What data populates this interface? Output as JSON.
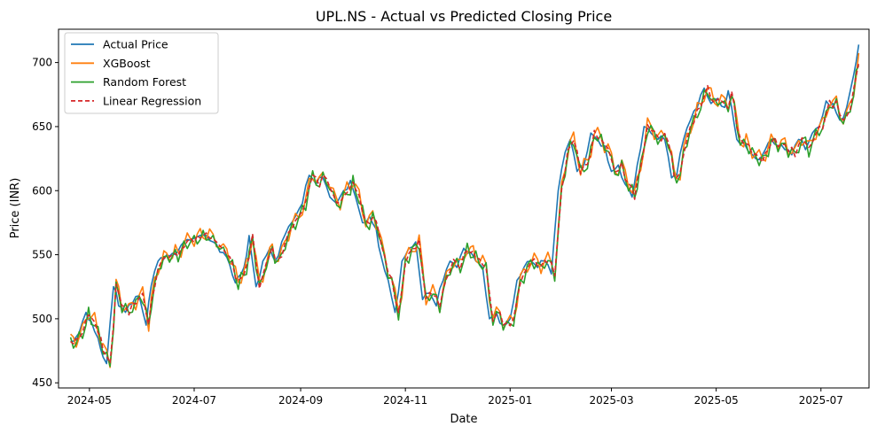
{
  "chart_data": {
    "type": "line",
    "title": "UPL.NS - Actual vs Predicted Closing Price",
    "xlabel": "Date",
    "ylabel": "Price (INR)",
    "xlim": [
      "2024-04-13",
      "2025-07-29"
    ],
    "ylim": [
      446,
      726
    ],
    "x_ticks": [
      "2024-05",
      "2024-07",
      "2024-09",
      "2024-11",
      "2025-01",
      "2025-03",
      "2025-05",
      "2025-07"
    ],
    "x_tick_dates": [
      "2024-05-01",
      "2024-07-01",
      "2024-09-01",
      "2024-11-01",
      "2025-01-01",
      "2025-03-01",
      "2025-05-01",
      "2025-07-01"
    ],
    "y_ticks": [
      450,
      500,
      550,
      600,
      650,
      700
    ],
    "grid": false,
    "legend_position": "top-left",
    "anchors": [
      [
        "2024-04-20",
        482
      ],
      [
        "2024-04-25",
        489
      ],
      [
        "2024-04-29",
        505
      ],
      [
        "2024-05-02",
        498
      ],
      [
        "2024-05-06",
        485
      ],
      [
        "2024-05-09",
        470
      ],
      [
        "2024-05-11",
        465
      ],
      [
        "2024-05-15",
        525
      ],
      [
        "2024-05-18",
        510
      ],
      [
        "2024-05-22",
        505
      ],
      [
        "2024-05-26",
        512
      ],
      [
        "2024-05-30",
        518
      ],
      [
        "2024-06-03",
        495
      ],
      [
        "2024-06-06",
        526
      ],
      [
        "2024-06-10",
        545
      ],
      [
        "2024-06-15",
        550
      ],
      [
        "2024-06-20",
        550
      ],
      [
        "2024-06-25",
        560
      ],
      [
        "2024-07-01",
        563
      ],
      [
        "2024-07-08",
        565
      ],
      [
        "2024-07-12",
        560
      ],
      [
        "2024-07-16",
        552
      ],
      [
        "2024-07-20",
        548
      ],
      [
        "2024-07-25",
        528
      ],
      [
        "2024-07-30",
        540
      ],
      [
        "2024-08-02",
        565
      ],
      [
        "2024-08-06",
        525
      ],
      [
        "2024-08-10",
        545
      ],
      [
        "2024-08-14",
        555
      ],
      [
        "2024-08-17",
        545
      ],
      [
        "2024-08-21",
        560
      ],
      [
        "2024-08-25",
        572
      ],
      [
        "2024-08-29",
        580
      ],
      [
        "2024-09-02",
        590
      ],
      [
        "2024-09-06",
        612
      ],
      [
        "2024-09-10",
        605
      ],
      [
        "2024-09-14",
        610
      ],
      [
        "2024-09-18",
        595
      ],
      [
        "2024-09-22",
        590
      ],
      [
        "2024-09-26",
        600
      ],
      [
        "2024-09-30",
        608
      ],
      [
        "2024-10-03",
        595
      ],
      [
        "2024-10-07",
        575
      ],
      [
        "2024-10-11",
        580
      ],
      [
        "2024-10-15",
        570
      ],
      [
        "2024-10-18",
        548
      ],
      [
        "2024-10-22",
        530
      ],
      [
        "2024-10-26",
        505
      ],
      [
        "2024-10-30",
        545
      ],
      [
        "2024-11-03",
        555
      ],
      [
        "2024-11-07",
        560
      ],
      [
        "2024-11-11",
        515
      ],
      [
        "2024-11-15",
        520
      ],
      [
        "2024-11-19",
        510
      ],
      [
        "2024-11-23",
        530
      ],
      [
        "2024-11-27",
        545
      ],
      [
        "2024-12-01",
        540
      ],
      [
        "2024-12-05",
        555
      ],
      [
        "2024-12-09",
        552
      ],
      [
        "2024-12-12",
        545
      ],
      [
        "2024-12-16",
        540
      ],
      [
        "2024-12-20",
        500
      ],
      [
        "2024-12-24",
        505
      ],
      [
        "2024-12-28",
        495
      ],
      [
        "2025-01-01",
        500
      ],
      [
        "2025-01-05",
        530
      ],
      [
        "2025-01-09",
        540
      ],
      [
        "2025-01-13",
        545
      ],
      [
        "2025-01-17",
        540
      ],
      [
        "2025-01-21",
        545
      ],
      [
        "2025-01-25",
        535
      ],
      [
        "2025-01-29",
        600
      ],
      [
        "2025-02-02",
        630
      ],
      [
        "2025-02-05",
        640
      ],
      [
        "2025-02-09",
        615
      ],
      [
        "2025-02-13",
        620
      ],
      [
        "2025-02-17",
        645
      ],
      [
        "2025-02-21",
        640
      ],
      [
        "2025-02-25",
        635
      ],
      [
        "2025-03-01",
        615
      ],
      [
        "2025-03-05",
        620
      ],
      [
        "2025-03-09",
        605
      ],
      [
        "2025-03-13",
        595
      ],
      [
        "2025-03-16",
        620
      ],
      [
        "2025-03-20",
        650
      ],
      [
        "2025-03-24",
        645
      ],
      [
        "2025-03-28",
        640
      ],
      [
        "2025-04-01",
        640
      ],
      [
        "2025-04-05",
        610
      ],
      [
        "2025-04-08",
        612
      ],
      [
        "2025-04-12",
        640
      ],
      [
        "2025-04-16",
        655
      ],
      [
        "2025-04-20",
        665
      ],
      [
        "2025-04-24",
        680
      ],
      [
        "2025-04-28",
        668
      ],
      [
        "2025-05-02",
        672
      ],
      [
        "2025-05-06",
        665
      ],
      [
        "2025-05-08",
        678
      ],
      [
        "2025-05-10",
        665
      ],
      [
        "2025-05-13",
        640
      ],
      [
        "2025-05-17",
        638
      ],
      [
        "2025-05-20",
        630
      ],
      [
        "2025-05-24",
        625
      ],
      [
        "2025-05-28",
        628
      ],
      [
        "2025-06-02",
        640
      ],
      [
        "2025-06-06",
        635
      ],
      [
        "2025-06-10",
        632
      ],
      [
        "2025-06-14",
        628
      ],
      [
        "2025-06-18",
        640
      ],
      [
        "2025-06-22",
        632
      ],
      [
        "2025-06-26",
        645
      ],
      [
        "2025-06-30",
        650
      ],
      [
        "2025-07-04",
        670
      ],
      [
        "2025-07-08",
        668
      ],
      [
        "2025-07-12",
        655
      ],
      [
        "2025-07-16",
        665
      ],
      [
        "2025-07-20",
        690
      ],
      [
        "2025-07-23",
        714
      ]
    ],
    "series": [
      {
        "name": "Actual Price",
        "color": "#1f77b4",
        "dash": "solid",
        "lag": 0,
        "offset": 0,
        "amp": 0
      },
      {
        "name": "XGBoost",
        "color": "#ff7f0e",
        "dash": "solid",
        "lag": 1,
        "offset": 1,
        "amp": 6
      },
      {
        "name": "Random Forest",
        "color": "#2ca02c",
        "dash": "solid",
        "lag": 1,
        "offset": -1,
        "amp": 5
      },
      {
        "name": "Linear Regression",
        "color": "#d62728",
        "dash": "dashed",
        "lag": 1,
        "offset": 0,
        "amp": 2
      }
    ]
  }
}
